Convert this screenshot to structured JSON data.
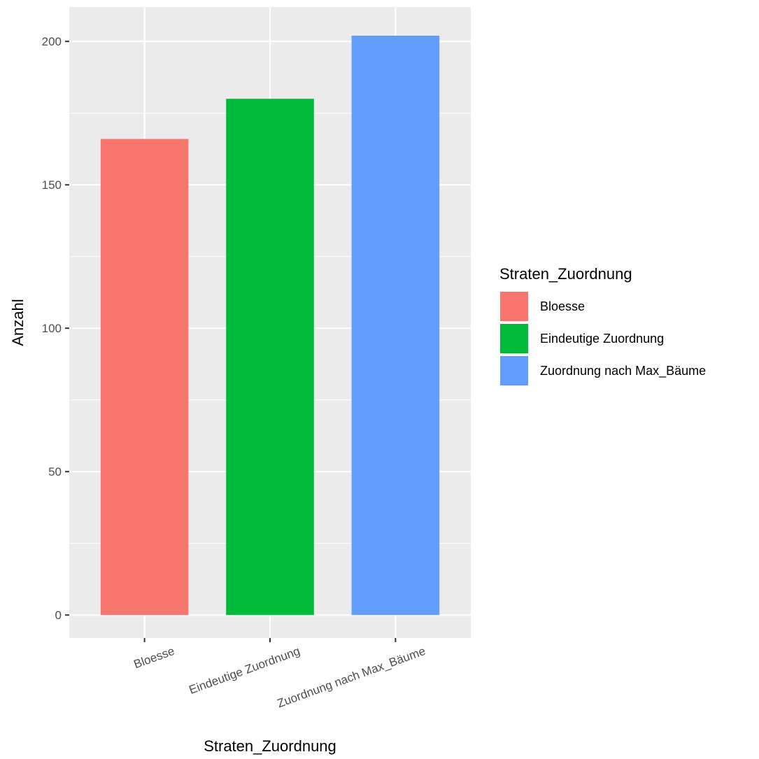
{
  "chart_data": {
    "type": "bar",
    "title": "",
    "xlabel": "Straten_Zuordnung",
    "ylabel": "Anzahl",
    "categories": [
      "Bloesse",
      "Eindeutige Zuordnung",
      "Zuordnung nach Max_Bäume"
    ],
    "values": [
      166,
      180,
      202
    ],
    "colors": [
      "#F8766D",
      "#00BA38",
      "#619CFF"
    ],
    "ylim": [
      -8,
      212
    ],
    "yticks": [
      0,
      50,
      100,
      150,
      200
    ],
    "grid": true,
    "panel_background": "#EBEBEB",
    "legend": {
      "title": "Straten_Zuordnung",
      "position": "right",
      "entries": [
        "Bloesse",
        "Eindeutige Zuordnung",
        "Zuordnung nach Max_Bäume"
      ]
    }
  }
}
